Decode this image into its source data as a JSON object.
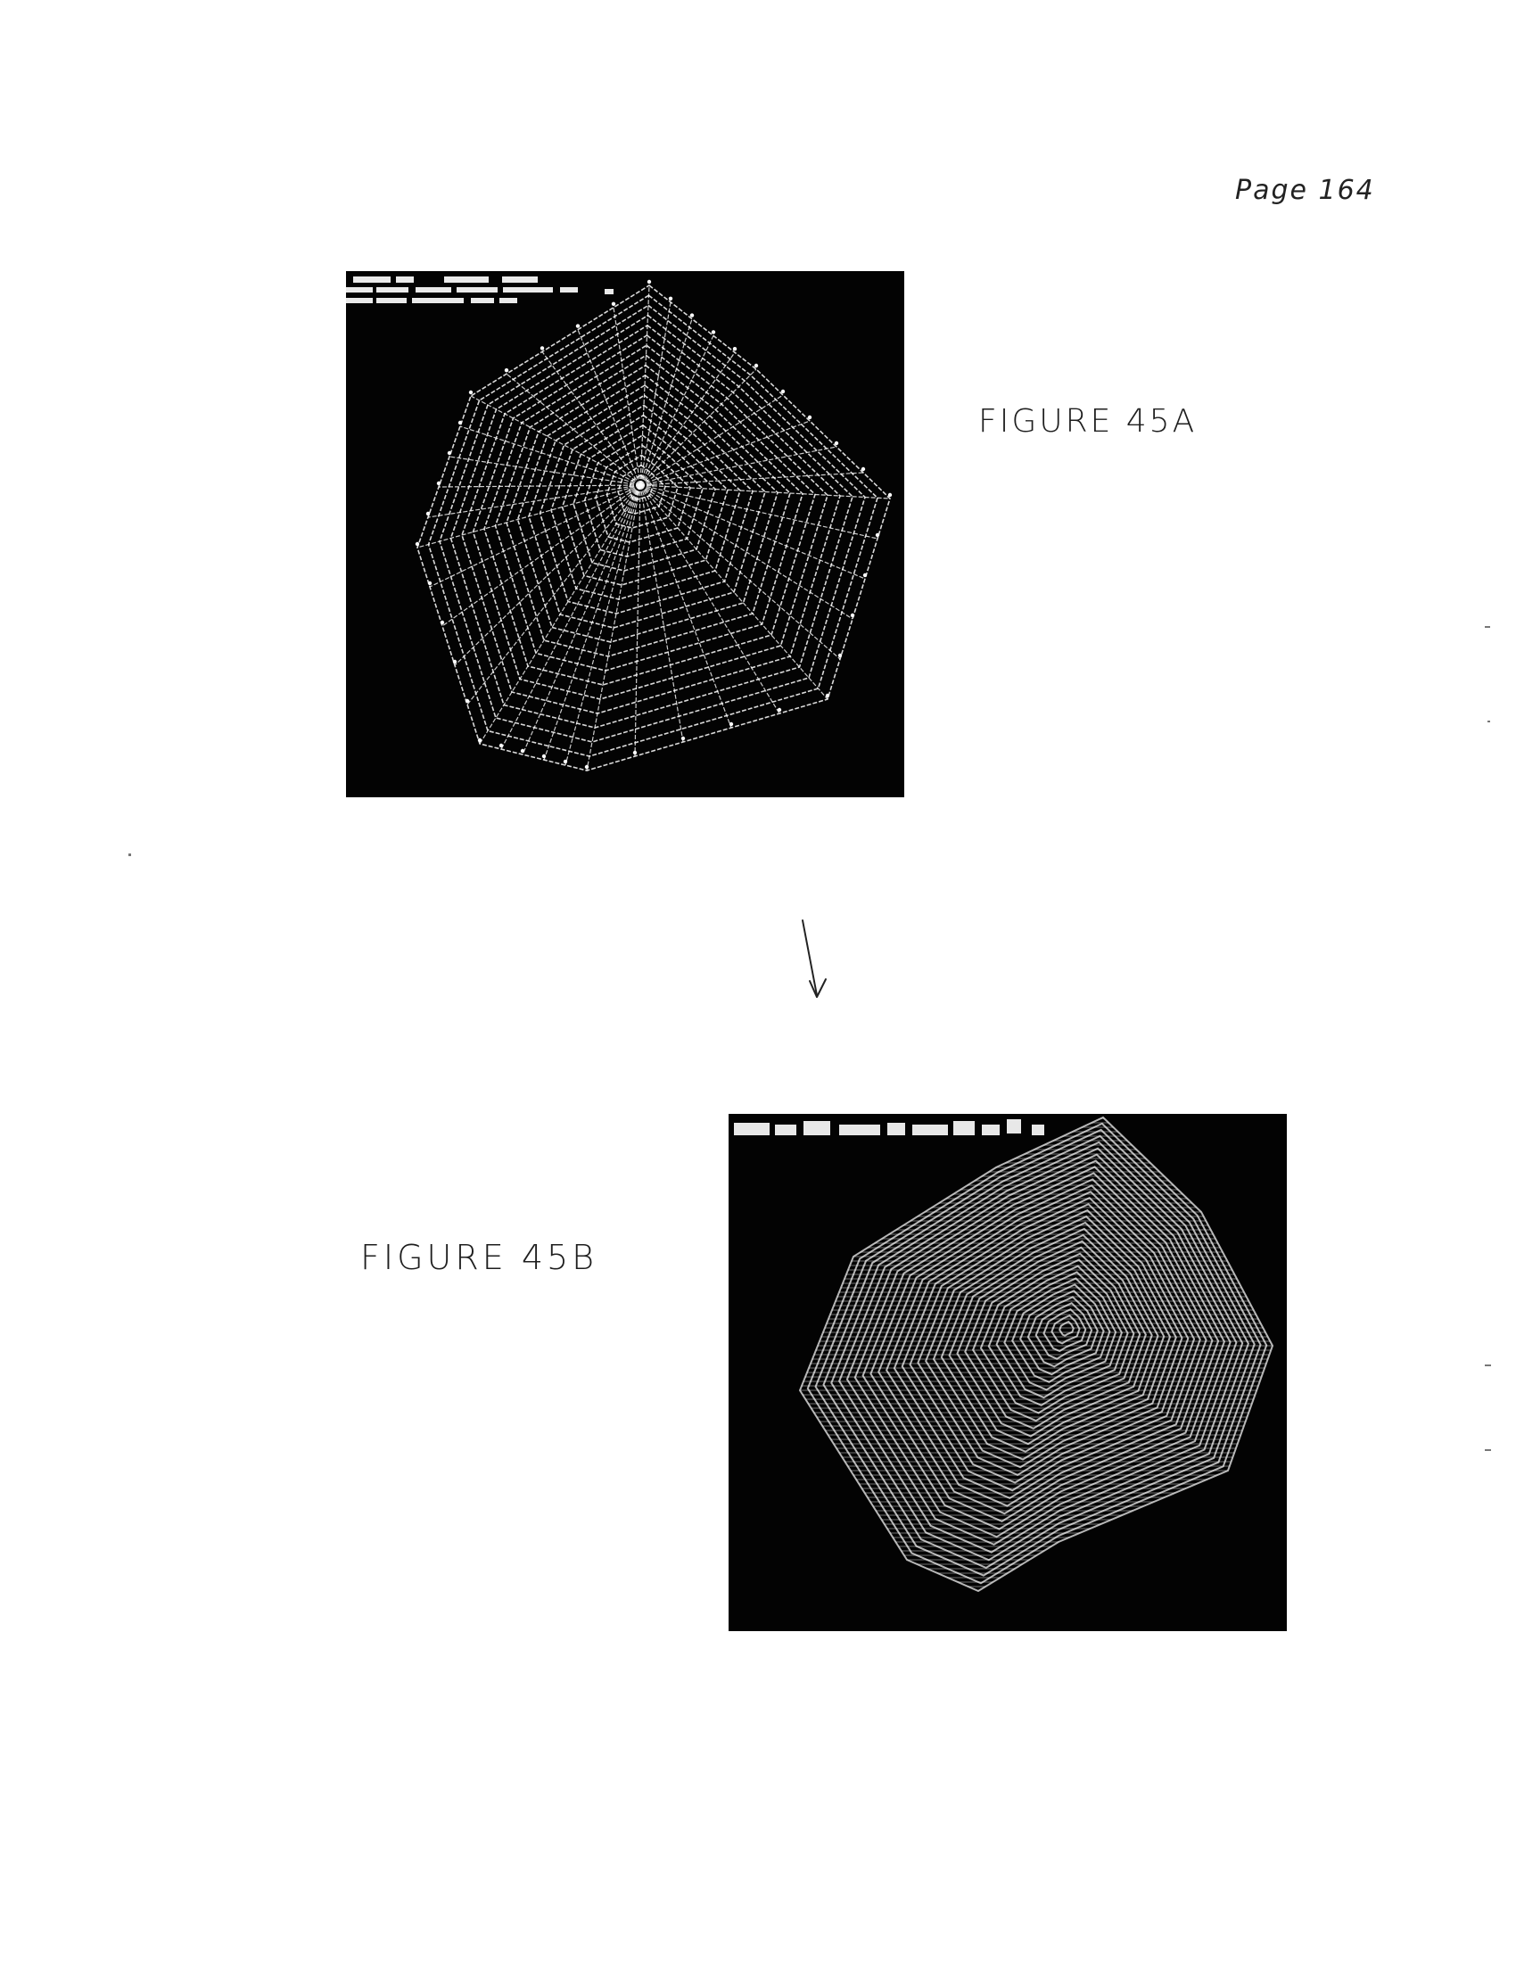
{
  "page": {
    "page_number": "Page 164"
  },
  "figures": [
    {
      "label": "FIGURE 45A"
    },
    {
      "label": "FIGURE 45B"
    }
  ]
}
